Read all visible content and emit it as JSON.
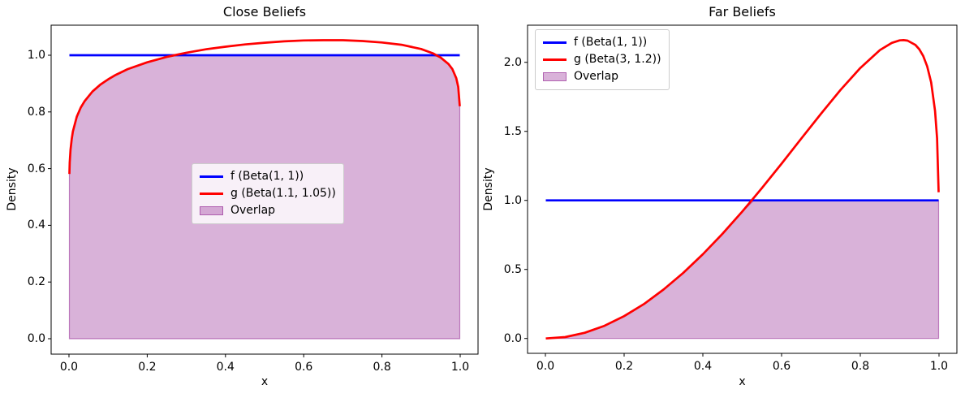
{
  "figure": {
    "background": "#ffffff"
  },
  "chart_data": [
    {
      "type": "line",
      "title": "Close Beliefs",
      "xlabel": "x",
      "ylabel": "Density",
      "xlim": [
        -0.0456,
        1.0456
      ],
      "ylim": [
        -0.0544,
        1.106
      ],
      "grid": false,
      "legend_position": "center",
      "xticks": {
        "values": [
          0,
          0.2,
          0.4,
          0.6,
          0.8,
          1.0
        ],
        "labels": [
          "0.0",
          "0.2",
          "0.4",
          "0.6",
          "0.8",
          "1.0"
        ]
      },
      "yticks": {
        "values": [
          0,
          0.2,
          0.4,
          0.6,
          0.8,
          1.0
        ],
        "labels": [
          "0.0",
          "0.2",
          "0.4",
          "0.6",
          "0.8",
          "1.0"
        ]
      },
      "series": [
        {
          "name": "f (Beta(1, 1))",
          "kind": "line",
          "color": "#0000ff",
          "lw": 2.7,
          "x": [
            0.001,
            0.999
          ],
          "y": [
            1.0,
            1.0
          ]
        },
        {
          "name": "g (Beta(1.1, 1.05))",
          "kind": "line",
          "color": "#ff0000",
          "lw": 2.7,
          "x": [
            0.001,
            0.002,
            0.004,
            0.007,
            0.01,
            0.02,
            0.03,
            0.04,
            0.06,
            0.08,
            0.1,
            0.12,
            0.15,
            0.2,
            0.25,
            0.27,
            0.3,
            0.35,
            0.4,
            0.45,
            0.5,
            0.55,
            0.6,
            0.65,
            0.7,
            0.75,
            0.8,
            0.85,
            0.9,
            0.93,
            0.95,
            0.97,
            0.98,
            0.99,
            0.995,
            0.999
          ],
          "y": [
            0.581,
            0.622,
            0.667,
            0.705,
            0.731,
            0.783,
            0.815,
            0.838,
            0.872,
            0.896,
            0.915,
            0.931,
            0.951,
            0.975,
            0.994,
            1.0,
            1.009,
            1.021,
            1.03,
            1.038,
            1.044,
            1.049,
            1.052,
            1.053,
            1.053,
            1.05,
            1.045,
            1.037,
            1.022,
            1.007,
            0.992,
            0.969,
            0.951,
            0.919,
            0.888,
            0.82
          ]
        },
        {
          "name": "Overlap",
          "kind": "fill",
          "color": "#800080",
          "alpha": 0.3,
          "baseline": 0,
          "x": [
            0.001,
            0.002,
            0.004,
            0.007,
            0.01,
            0.02,
            0.03,
            0.04,
            0.06,
            0.08,
            0.1,
            0.12,
            0.15,
            0.2,
            0.25,
            0.27,
            0.3,
            0.35,
            0.4,
            0.45,
            0.5,
            0.55,
            0.6,
            0.65,
            0.7,
            0.75,
            0.8,
            0.85,
            0.9,
            0.93,
            0.95,
            0.97,
            0.98,
            0.99,
            0.995,
            0.999
          ],
          "y": [
            0.581,
            0.622,
            0.667,
            0.705,
            0.731,
            0.783,
            0.815,
            0.838,
            0.872,
            0.896,
            0.915,
            0.931,
            0.951,
            0.975,
            0.994,
            1.0,
            1.0,
            1.0,
            1.0,
            1.0,
            1.0,
            1.0,
            1.0,
            1.0,
            1.0,
            1.0,
            1.0,
            1.0,
            1.0,
            1.0,
            0.992,
            0.969,
            0.951,
            0.919,
            0.888,
            0.82
          ]
        }
      ]
    },
    {
      "type": "line",
      "title": "Far Beliefs",
      "xlabel": "x",
      "ylabel": "Density",
      "xlim": [
        -0.0454,
        1.0454
      ],
      "ylim": [
        -0.1076,
        2.269
      ],
      "grid": false,
      "legend_position": "upper left",
      "xticks": {
        "values": [
          0,
          0.2,
          0.4,
          0.6,
          0.8,
          1.0
        ],
        "labels": [
          "0.0",
          "0.2",
          "0.4",
          "0.6",
          "0.8",
          "1.0"
        ]
      },
      "yticks": {
        "values": [
          0,
          0.5,
          1.0,
          1.5,
          2.0
        ],
        "labels": [
          "0.0",
          "0.5",
          "1.0",
          "1.5",
          "2.0"
        ]
      },
      "series": [
        {
          "name": "f (Beta(1, 1))",
          "kind": "line",
          "color": "#0000ff",
          "lw": 2.7,
          "x": [
            0.001,
            0.999
          ],
          "y": [
            1.0,
            1.0
          ]
        },
        {
          "name": "g (Beta(3, 1.2))",
          "kind": "line",
          "color": "#ff0000",
          "lw": 2.7,
          "x": [
            0.001,
            0.05,
            0.1,
            0.15,
            0.2,
            0.25,
            0.3,
            0.35,
            0.4,
            0.45,
            0.5,
            0.53,
            0.55,
            0.6,
            0.65,
            0.7,
            0.75,
            0.8,
            0.85,
            0.88,
            0.9,
            0.91,
            0.92,
            0.94,
            0.95,
            0.96,
            0.97,
            0.98,
            0.99,
            0.995,
            0.999
          ],
          "y": [
            0.0,
            0.01,
            0.041,
            0.092,
            0.162,
            0.249,
            0.354,
            0.475,
            0.61,
            0.759,
            0.919,
            1.02,
            1.089,
            1.266,
            1.447,
            1.627,
            1.801,
            1.959,
            2.089,
            2.141,
            2.159,
            2.161,
            2.157,
            2.126,
            2.094,
            2.045,
            1.971,
            1.855,
            1.648,
            1.449,
            1.059
          ]
        },
        {
          "name": "Overlap",
          "kind": "fill",
          "color": "#800080",
          "alpha": 0.3,
          "baseline": 0,
          "x": [
            0.001,
            0.05,
            0.1,
            0.15,
            0.2,
            0.25,
            0.3,
            0.35,
            0.4,
            0.45,
            0.5,
            0.53,
            0.55,
            0.6,
            0.65,
            0.7,
            0.75,
            0.8,
            0.85,
            0.88,
            0.9,
            0.91,
            0.92,
            0.94,
            0.95,
            0.96,
            0.97,
            0.98,
            0.99,
            0.995,
            0.999
          ],
          "y": [
            0.0,
            0.01,
            0.041,
            0.092,
            0.162,
            0.249,
            0.354,
            0.475,
            0.61,
            0.759,
            0.919,
            1.0,
            1.0,
            1.0,
            1.0,
            1.0,
            1.0,
            1.0,
            1.0,
            1.0,
            1.0,
            1.0,
            1.0,
            1.0,
            1.0,
            1.0,
            1.0,
            1.0,
            1.0,
            1.0,
            1.0
          ]
        }
      ]
    }
  ]
}
